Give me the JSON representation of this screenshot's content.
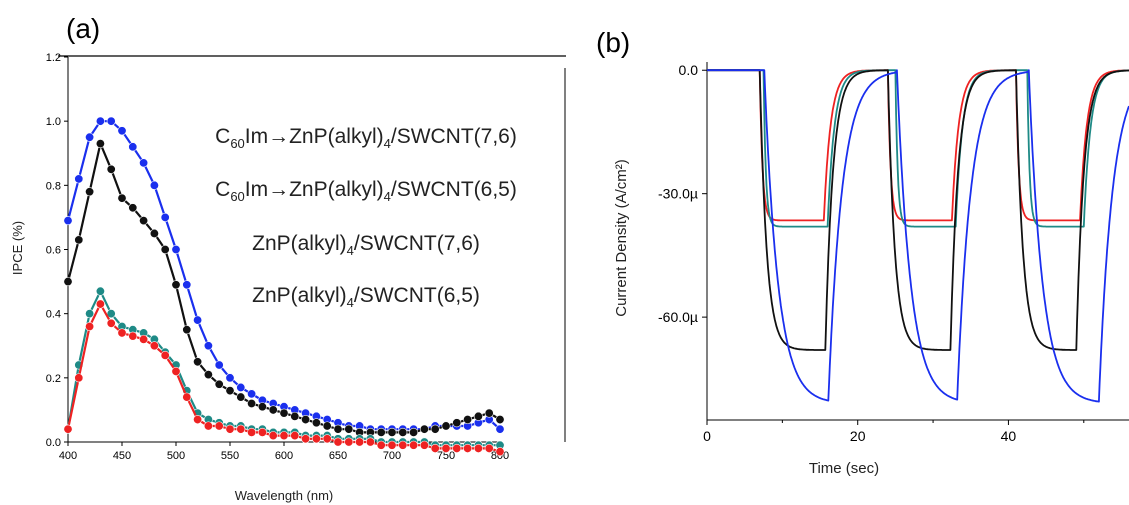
{
  "panels": {
    "a": {
      "label": "(a)"
    },
    "b": {
      "label": "(b)"
    }
  },
  "colors": {
    "red": "#ee2222",
    "black": "#111111",
    "blue": "#1a2fee",
    "teal": "#1e8a86"
  },
  "chart_data": [
    {
      "type": "line",
      "panel": "(a)",
      "xlabel": "Wavelength (nm)",
      "ylabel": "IPCE (%)",
      "xlim": [
        400,
        800
      ],
      "ylim": [
        0,
        1.2
      ],
      "xticks": [
        "400",
        "450",
        "500",
        "550",
        "600",
        "650",
        "700",
        "750",
        "800"
      ],
      "yticks": [
        "0.0",
        "0.2",
        "0.4",
        "0.6",
        "0.8",
        "1.0",
        "1.2"
      ],
      "markers": "circle",
      "legend_entries": [
        {
          "pre": "C",
          "sub1": "60",
          "mid": "Im→ZnP(alkyl)",
          "sub2": "4",
          "post": "/SWCNT(7,6)"
        },
        {
          "pre": "C",
          "sub1": "60",
          "mid": "Im→ZnP(alkyl)",
          "sub2": "4",
          "post": "/SWCNT(6,5)"
        },
        {
          "pre": "",
          "sub1": "",
          "mid": "ZnP(alkyl)",
          "sub2": "4",
          "post": "/SWCNT(7,6)"
        },
        {
          "pre": "",
          "sub1": "",
          "mid": "ZnP(alkyl)",
          "sub2": "4",
          "post": "/SWCNT(6,5)"
        }
      ],
      "x": [
        400,
        410,
        420,
        430,
        440,
        450,
        460,
        470,
        480,
        490,
        500,
        510,
        520,
        530,
        540,
        550,
        560,
        570,
        580,
        590,
        600,
        610,
        620,
        630,
        640,
        650,
        660,
        670,
        680,
        690,
        700,
        710,
        720,
        730,
        740,
        750,
        760,
        770,
        780,
        790,
        800
      ],
      "series": [
        {
          "color": "blue",
          "values": [
            0.69,
            0.82,
            0.95,
            1.0,
            1.0,
            0.97,
            0.92,
            0.87,
            0.8,
            0.7,
            0.6,
            0.49,
            0.38,
            0.3,
            0.24,
            0.2,
            0.17,
            0.15,
            0.13,
            0.12,
            0.11,
            0.1,
            0.09,
            0.08,
            0.07,
            0.06,
            0.05,
            0.05,
            0.04,
            0.04,
            0.04,
            0.04,
            0.04,
            0.04,
            0.05,
            0.05,
            0.05,
            0.05,
            0.06,
            0.07,
            0.04
          ]
        },
        {
          "color": "black",
          "values": [
            0.5,
            0.63,
            0.78,
            0.93,
            0.85,
            0.76,
            0.73,
            0.69,
            0.65,
            0.6,
            0.49,
            0.35,
            0.25,
            0.21,
            0.18,
            0.16,
            0.14,
            0.12,
            0.11,
            0.1,
            0.09,
            0.08,
            0.07,
            0.06,
            0.05,
            0.04,
            0.04,
            0.03,
            0.03,
            0.03,
            0.03,
            0.03,
            0.03,
            0.04,
            0.04,
            0.05,
            0.06,
            0.07,
            0.08,
            0.09,
            0.07
          ]
        },
        {
          "color": "teal",
          "values": [
            0.04,
            0.24,
            0.4,
            0.47,
            0.4,
            0.36,
            0.35,
            0.34,
            0.32,
            0.28,
            0.24,
            0.16,
            0.09,
            0.07,
            0.06,
            0.05,
            0.05,
            0.04,
            0.04,
            0.03,
            0.03,
            0.03,
            0.02,
            0.02,
            0.02,
            0.01,
            0.01,
            0.01,
            0.01,
            0.0,
            0.0,
            0.0,
            0.0,
            0.0,
            -0.01,
            -0.01,
            -0.01,
            -0.01,
            -0.01,
            -0.01,
            -0.01
          ]
        },
        {
          "color": "red",
          "values": [
            0.04,
            0.2,
            0.36,
            0.43,
            0.37,
            0.34,
            0.33,
            0.32,
            0.3,
            0.27,
            0.22,
            0.14,
            0.07,
            0.05,
            0.05,
            0.04,
            0.04,
            0.03,
            0.03,
            0.02,
            0.02,
            0.02,
            0.01,
            0.01,
            0.01,
            0.0,
            0.0,
            0.0,
            0.0,
            -0.01,
            -0.01,
            -0.01,
            -0.01,
            -0.01,
            -0.02,
            -0.02,
            -0.02,
            -0.02,
            -0.02,
            -0.02,
            -0.03
          ]
        }
      ]
    },
    {
      "type": "line",
      "panel": "(b)",
      "xlabel": "Time (sec)",
      "ylabel": "Current Density (A/cm²)",
      "xlim": [
        0,
        56
      ],
      "ylim": [
        -85,
        2
      ],
      "xticks": [
        0,
        20,
        40
      ],
      "yticks": [
        {
          "value": 0,
          "label": "0.0"
        },
        {
          "value": -30,
          "label": "-30.0µ"
        },
        {
          "value": -60,
          "label": "-60.0µ"
        }
      ],
      "series": [
        {
          "color": "red",
          "level": -36.5,
          "on": [
            7,
            24,
            41
          ],
          "off": [
            15.5,
            32.5,
            49.5
          ],
          "tau_on": 0.35,
          "tau_off": 0.9
        },
        {
          "color": "teal",
          "level": -38.0,
          "on": [
            7.5,
            25,
            42.5
          ],
          "off": [
            16,
            33,
            50
          ],
          "tau_on": 0.3,
          "tau_off": 0.9
        },
        {
          "color": "black",
          "level": -68.0,
          "on": [
            7,
            24,
            41
          ],
          "off": [
            15.7,
            32.3,
            49
          ],
          "tau_on": 0.9,
          "tau_off": 1.0
        },
        {
          "color": "blue",
          "level": -81.0,
          "on": [
            7.6,
            25.2,
            42.7
          ],
          "off": [
            16.1,
            33.2,
            52
          ],
          "tau_on": 1.8,
          "tau_off": 1.8
        }
      ]
    }
  ]
}
